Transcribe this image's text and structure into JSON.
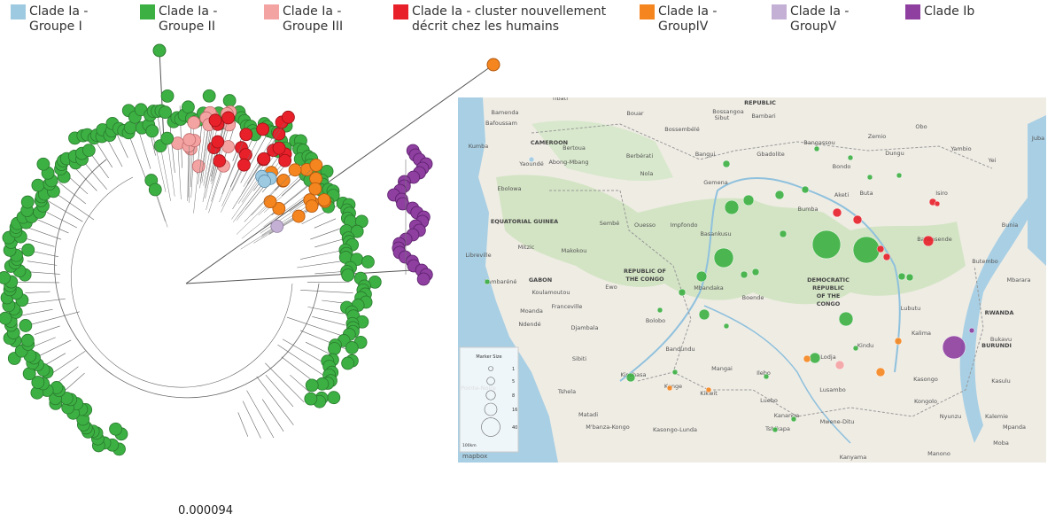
{
  "legend": [
    {
      "label": "Clade Ia - Groupe I",
      "color": "#9ecae1"
    },
    {
      "label": "Clade Ia - Groupe II",
      "color": "#3cb043"
    },
    {
      "label": "Clade Ia - Groupe III",
      "color": "#f4a3a3"
    },
    {
      "label": "Clade Ia - cluster nouvellement décrit chez les humains",
      "color": "#e8202a"
    },
    {
      "label": "Clade Ia - GroupIV",
      "color": "#f5861f"
    },
    {
      "label": "Clade Ia - GroupV",
      "color": "#c5b0d5"
    },
    {
      "label": "Clade Ib",
      "color": "#8e3fa0"
    }
  ],
  "tree": {
    "scale_label": "0.000094"
  },
  "map": {
    "countries": [
      "CAMEROON",
      "EQUATORIAL GUINEA",
      "GABON",
      "REPUBLIC OF THE CONGO",
      "DEMOCRATIC REPUBLIC OF THE CONGO",
      "RWANDA",
      "BURUNDI",
      "REPUBLIC"
    ],
    "places": [
      "Bamenda",
      "Bafoussam",
      "Kumba",
      "Yaoundé",
      "Bertoua",
      "Abong-Mbang",
      "Ebolowa",
      "Libreville",
      "Mitzic",
      "Makokou",
      "Lambaréné",
      "Koulamoutou",
      "Franceville",
      "Moanda",
      "Ndendé",
      "Ouesso",
      "Impfondo",
      "Ewo",
      "Djambala",
      "Sibiti",
      "Pointe-Noire",
      "Tshela",
      "Matadi",
      "M'banza-Kongo",
      "Kinshasa",
      "Bolobo",
      "Bandundu",
      "Kenge",
      "Kikwit",
      "Mangai",
      "Ilebo",
      "Luebo",
      "Tshikapa",
      "Kananga",
      "Mwene-Ditu",
      "Kanyama",
      "Kasongo-Lunda",
      "Lusambo",
      "Lodja",
      "Kindu",
      "Kasongo",
      "Kongolo",
      "Nyunzu",
      "Kalemie",
      "Manono",
      "Moba",
      "Mpanda",
      "Kasulu",
      "Kalima",
      "Lubutu",
      "Butembo",
      "Bunia",
      "Mbarara",
      "Bukavu",
      "Isiro",
      "Buta",
      "Aketi",
      "Bumba",
      "Gemena",
      "Basankusu",
      "Mbandaka",
      "Boende",
      "Bondo",
      "Bangassou",
      "Gbadolite",
      "Bangui",
      "Berbérati",
      "Nola",
      "Bouar",
      "Sibut",
      "Bambari",
      "Bossangoa",
      "Bossembélé",
      "Zemio",
      "Obo",
      "Yambio",
      "Yei",
      "Juba",
      "Tibati",
      "Sembé",
      "Bafwasende",
      "Dungu"
    ],
    "marker_legend": {
      "title": "Marker Size",
      "sizes": [
        1,
        5,
        8,
        16,
        40
      ]
    },
    "scale": "100km",
    "attribution": "mapbox"
  }
}
